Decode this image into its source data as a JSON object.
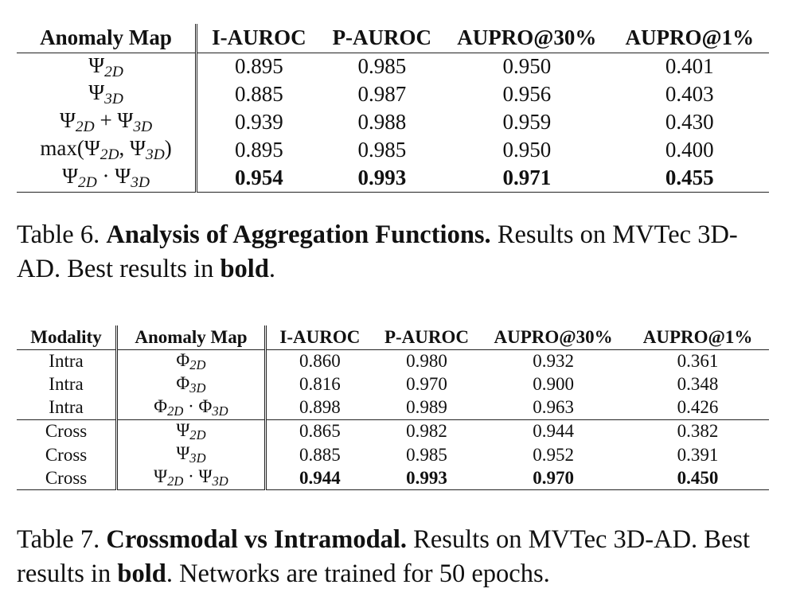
{
  "table6": {
    "headers": [
      "Anomaly Map",
      "I-AUROC",
      "P-AUROC",
      "AUPRO@30%",
      "AUPRO@1%"
    ],
    "rows": [
      {
        "map": "Ψ_2D",
        "values": [
          "0.895",
          "0.985",
          "0.950",
          "0.401"
        ],
        "best": false
      },
      {
        "map": "Ψ_3D",
        "values": [
          "0.885",
          "0.987",
          "0.956",
          "0.403"
        ],
        "best": false
      },
      {
        "map": "Ψ_2D + Ψ_3D",
        "values": [
          "0.939",
          "0.988",
          "0.959",
          "0.430"
        ],
        "best": false
      },
      {
        "map": "max(Ψ_2D, Ψ_3D)",
        "values": [
          "0.895",
          "0.985",
          "0.950",
          "0.400"
        ],
        "best": false
      },
      {
        "map": "Ψ_2D · Ψ_3D",
        "values": [
          "0.954",
          "0.993",
          "0.971",
          "0.455"
        ],
        "best": true
      }
    ],
    "caption": {
      "label": "Table 6.",
      "title": "Analysis of Aggregation Functions.",
      "text1": "Results on MVTec 3D-AD. Best results in",
      "bold_word": "bold",
      "text2": "."
    }
  },
  "table7": {
    "headers": [
      "Modality",
      "Anomaly Map",
      "I-AUROC",
      "P-AUROC",
      "AUPRO@30%",
      "AUPRO@1%"
    ],
    "rows": [
      {
        "modality": "Intra",
        "map": "Φ_2D",
        "values": [
          "0.860",
          "0.980",
          "0.932",
          "0.361"
        ],
        "best": false
      },
      {
        "modality": "Intra",
        "map": "Φ_3D",
        "values": [
          "0.816",
          "0.970",
          "0.900",
          "0.348"
        ],
        "best": false
      },
      {
        "modality": "Intra",
        "map": "Φ_2D · Φ_3D",
        "values": [
          "0.898",
          "0.989",
          "0.963",
          "0.426"
        ],
        "best": false
      },
      {
        "modality": "Cross",
        "map": "Ψ_2D",
        "values": [
          "0.865",
          "0.982",
          "0.944",
          "0.382"
        ],
        "best": false
      },
      {
        "modality": "Cross",
        "map": "Ψ_3D",
        "values": [
          "0.885",
          "0.985",
          "0.952",
          "0.391"
        ],
        "best": false
      },
      {
        "modality": "Cross",
        "map": "Ψ_2D · Ψ_3D",
        "values": [
          "0.944",
          "0.993",
          "0.970",
          "0.450"
        ],
        "best": true
      }
    ],
    "caption": {
      "label": "Table 7.",
      "title": "Crossmodal vs Intramodal.",
      "text1": "Results on MVTec 3D-AD. Best results in",
      "bold_word": "bold",
      "text2": ". Networks are trained for 50 epochs."
    }
  }
}
